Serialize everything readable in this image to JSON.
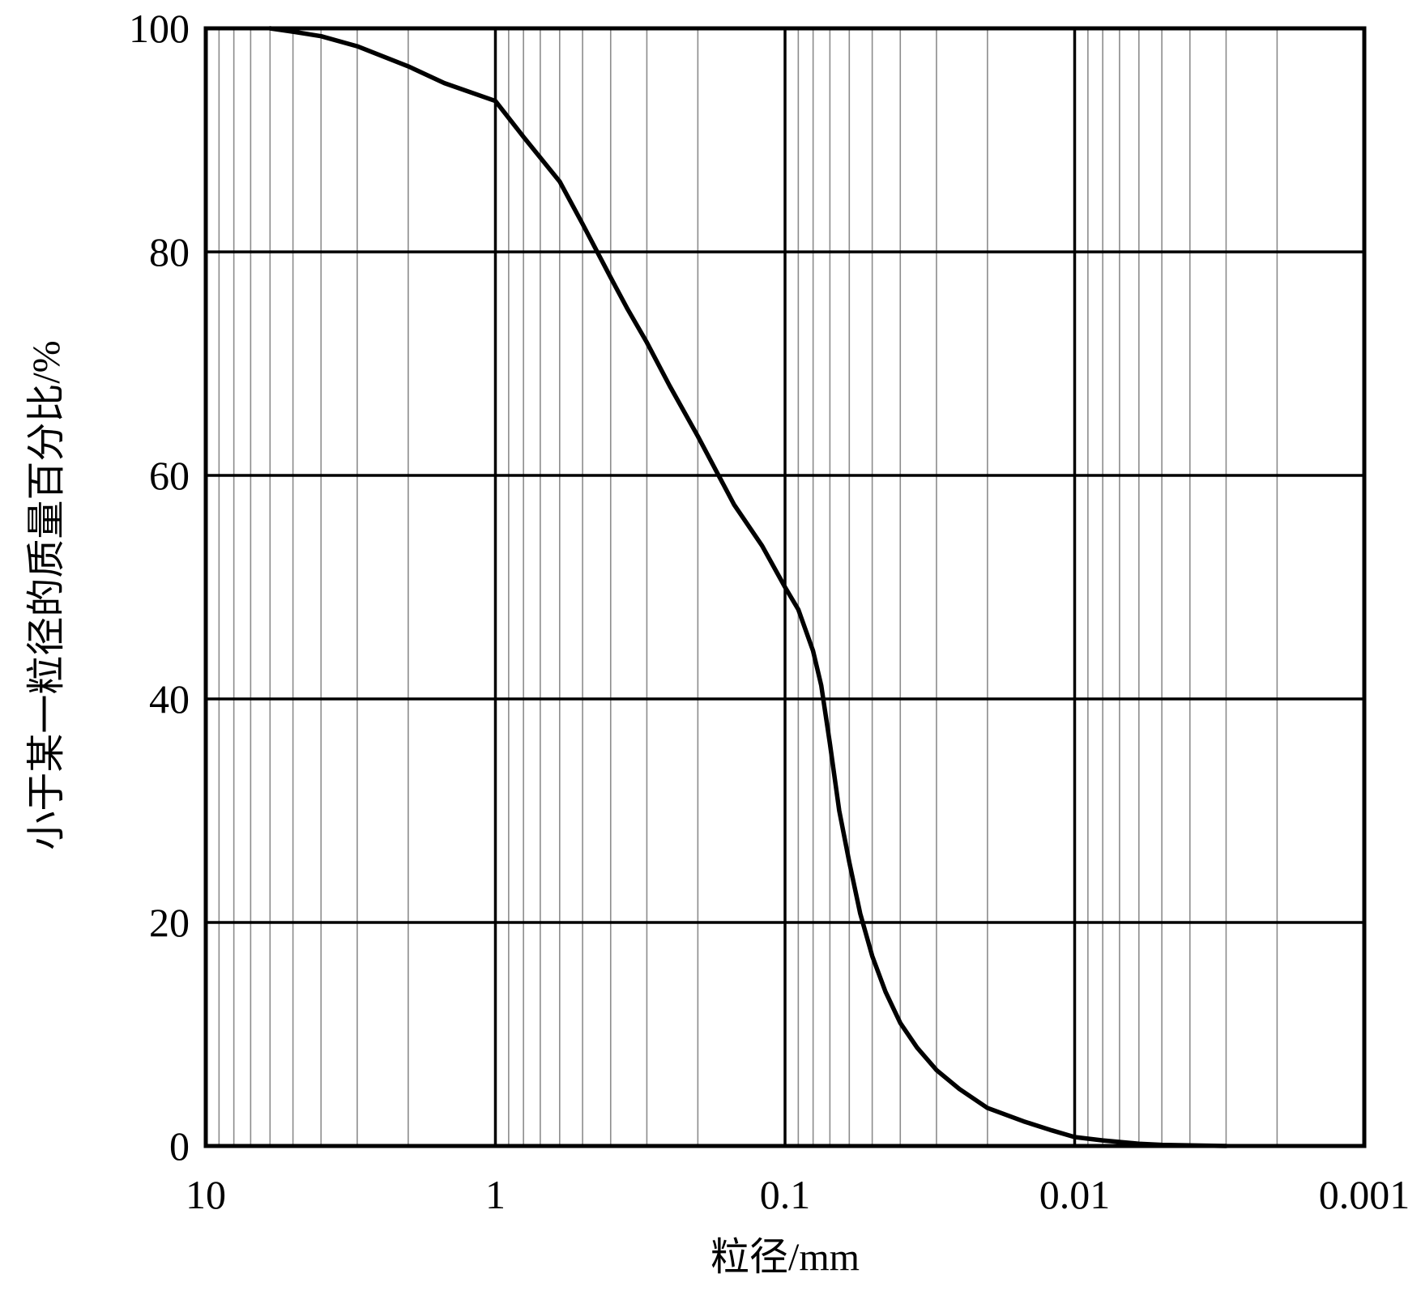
{
  "chart_data": {
    "type": "line",
    "xlabel": "粒径/mm",
    "ylabel": "小于某一粒径的质量百分比/%",
    "x_scale": "log",
    "x_reversed": true,
    "xlim": [
      10,
      0.001
    ],
    "ylim": [
      0,
      100
    ],
    "x_ticks": [
      10,
      1,
      0.1,
      0.01,
      0.001
    ],
    "x_tick_labels": [
      "10",
      "1",
      "0.1",
      "0.01",
      "0.001"
    ],
    "y_ticks": [
      0,
      20,
      40,
      60,
      80,
      100
    ],
    "y_tick_labels": [
      "0",
      "20",
      "40",
      "60",
      "80",
      "100"
    ],
    "grid": true,
    "series": [
      {
        "x": [
          6.0,
          5.0,
          4.0,
          3.0,
          2.0,
          1.5,
          1.0,
          0.8,
          0.6,
          0.5,
          0.4,
          0.35,
          0.3,
          0.25,
          0.2,
          0.15,
          0.12,
          0.1,
          0.09,
          0.08,
          0.075,
          0.07,
          0.065,
          0.06,
          0.055,
          0.05,
          0.045,
          0.04,
          0.035,
          0.03,
          0.025,
          0.02,
          0.015,
          0.012,
          0.01,
          0.008,
          0.006,
          0.005,
          0.004,
          0.003
        ],
        "y": [
          100,
          99.7,
          99.3,
          98.4,
          96.6,
          95.1,
          93.5,
          90.3,
          86.3,
          82.5,
          77.7,
          74.9,
          71.9,
          68.0,
          63.5,
          57.4,
          53.7,
          50.0,
          48.0,
          44.3,
          41.2,
          36.0,
          30.0,
          25.4,
          20.8,
          17.0,
          13.8,
          11.0,
          8.8,
          6.8,
          5.1,
          3.4,
          2.2,
          1.4,
          0.8,
          0.5,
          0.2,
          0.1,
          0.05,
          0
        ]
      }
    ]
  }
}
